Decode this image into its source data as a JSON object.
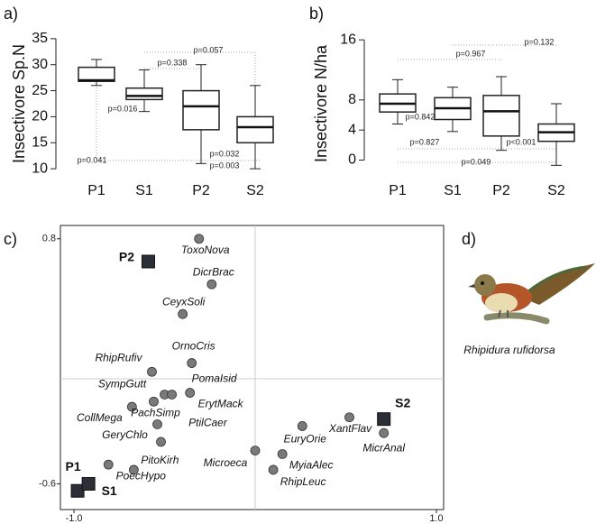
{
  "chart_data": [
    {
      "type": "box",
      "label": "a)",
      "y_label": "Insectivore Sp.N",
      "categories": [
        "P1",
        "S1",
        "P2",
        "S2"
      ],
      "boxes": [
        {
          "whislo": 26,
          "q1": 26.8,
          "med": 27,
          "q3": 29.5,
          "whishi": 31
        },
        {
          "whislo": 21,
          "q1": 23.3,
          "med": 24,
          "q3": 25.5,
          "whishi": 29
        },
        {
          "whislo": 11,
          "q1": 17.5,
          "med": 22,
          "q3": 25,
          "whishi": 30
        },
        {
          "whislo": 10,
          "q1": 15,
          "med": 18,
          "q3": 20,
          "whishi": 26
        }
      ],
      "ylim": [
        9.5,
        35.5
      ],
      "yticks": [
        10,
        15,
        20,
        25,
        30,
        35
      ],
      "annotations": [
        "p=0.016",
        "p=0.338",
        "p=0.057",
        "p=0.041",
        "p=0.032",
        "p=0.003"
      ]
    },
    {
      "type": "box",
      "label": "b)",
      "y_label": "Insectivore N/ha",
      "categories": [
        "P1",
        "S1",
        "P2",
        "S2"
      ],
      "boxes": [
        {
          "whislo": 4.8,
          "q1": 6.4,
          "med": 7.5,
          "q3": 8.8,
          "whishi": 10.7
        },
        {
          "whislo": 3.8,
          "q1": 5.4,
          "med": 6.9,
          "q3": 8.3,
          "whishi": 9.7
        },
        {
          "whislo": 1.3,
          "q1": 3.2,
          "med": 6.5,
          "q3": 8.6,
          "whishi": 11.1
        },
        {
          "whislo": -0.7,
          "q1": 2.5,
          "med": 3.7,
          "q3": 4.8,
          "whishi": 7.5
        }
      ],
      "ylim": [
        -1.5,
        16.5
      ],
      "yticks": [
        0,
        4,
        8,
        16
      ],
      "annotations": [
        "p=0.967",
        "p=0.132",
        "p=0.842",
        "p=0.827",
        "p<0.001",
        "p=0.049"
      ]
    },
    {
      "type": "scatter",
      "label": "c)",
      "species": {
        "labels": [
          "ToxoNova",
          "DicrBrac",
          "CeyxSoli",
          "OrnoCris",
          "RhipRufiv",
          "SympGutt",
          "PomaIsid",
          "ErytMack",
          "CollMega",
          "PachSimp",
          "PtilCaer",
          "GeryChlo",
          "PitoKirh",
          "PoecHypo",
          "Microeca",
          "MyiaAlec",
          "RhipLeuc",
          "EuryOrie",
          "XantFlav",
          "MicrAnal"
        ],
        "x": [
          -0.31,
          -0.24,
          -0.4,
          -0.35,
          -0.57,
          -0.5,
          -0.46,
          -0.36,
          -0.68,
          -0.56,
          -0.54,
          -0.52,
          -0.67,
          -0.81,
          0.0,
          0.15,
          0.1,
          0.26,
          0.52,
          0.71
        ],
        "y": [
          0.8,
          0.54,
          0.37,
          0.09,
          0.04,
          -0.09,
          -0.09,
          -0.08,
          -0.16,
          -0.13,
          -0.26,
          -0.36,
          -0.52,
          -0.49,
          -0.41,
          -0.43,
          -0.52,
          -0.27,
          -0.22,
          -0.31
        ],
        "color": "#7a7a7a"
      },
      "sites": {
        "labels": [
          "P2",
          "S2",
          "P1",
          "S1"
        ],
        "x": [
          -0.59,
          0.71,
          -0.98,
          -0.92
        ],
        "y": [
          0.67,
          -0.23,
          -0.64,
          -0.6
        ],
        "color": "#2b2f36"
      },
      "xlim": [
        -1.075,
        1.04
      ],
      "ylim": [
        -0.747,
        0.876
      ],
      "xticks": [
        {
          "value": -1.0,
          "label": "-1.0"
        },
        {
          "value": 1.0,
          "label": "1.0"
        }
      ],
      "yticks": [
        0.8,
        -0.6
      ]
    }
  ],
  "illustration": {
    "label": "d)",
    "caption": "Rhipidura rufidorsa"
  }
}
